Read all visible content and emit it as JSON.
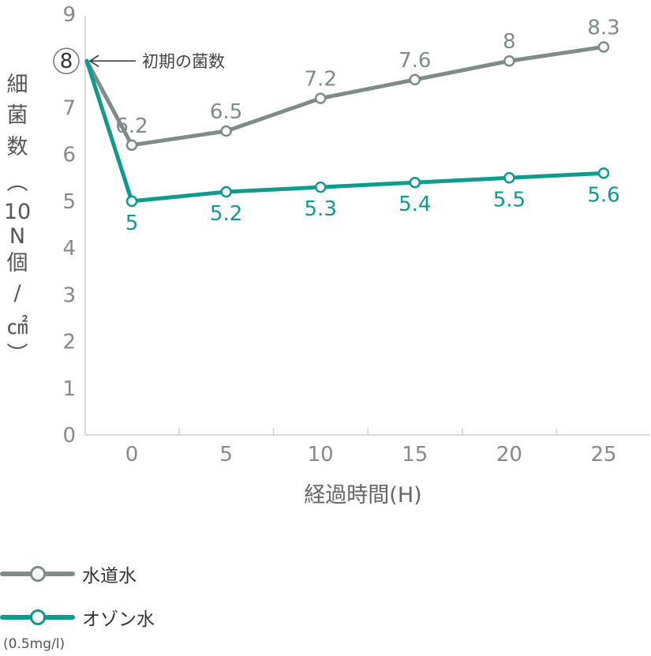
{
  "chart_data": {
    "type": "line",
    "x": [
      0,
      5,
      10,
      15,
      20,
      25
    ],
    "xlabel": "経過時間(H)",
    "ylabel": [
      "細",
      "菌",
      "数",
      "︵",
      "10",
      "N",
      "個",
      "/",
      "㎠",
      "︶"
    ],
    "ylim": [
      0,
      9
    ],
    "yticks": [
      "0",
      "1",
      "2",
      "3",
      "4",
      "5",
      "6",
      "7",
      "8",
      "9"
    ],
    "xticks": [
      "0",
      "5",
      "10",
      "15",
      "20",
      "25"
    ],
    "initial": {
      "value": 8,
      "label": "8",
      "annotation": "初期の菌数"
    },
    "series": [
      {
        "name": "水道水",
        "color": "#7f8b89",
        "values": [
          6.2,
          6.5,
          7.2,
          7.6,
          8,
          8.3
        ],
        "labels": [
          "6.2",
          "6.5",
          "7.2",
          "7.6",
          "8",
          "8.3"
        ],
        "label_position": "above"
      },
      {
        "name": "オゾン水",
        "color": "#0e9a8c",
        "values": [
          5,
          5.2,
          5.3,
          5.4,
          5.5,
          5.6
        ],
        "labels": [
          "5",
          "5.2",
          "5.3",
          "5.4",
          "5.5",
          "5.6"
        ],
        "label_position": "below"
      }
    ],
    "grid": false,
    "legend_position": "bottom-left"
  },
  "legend": {
    "items": [
      {
        "label": "水道水",
        "color": "#7f8b89"
      },
      {
        "label": "オゾン水",
        "color": "#0e9a8c"
      }
    ],
    "note": "(0.5mg/l)"
  }
}
